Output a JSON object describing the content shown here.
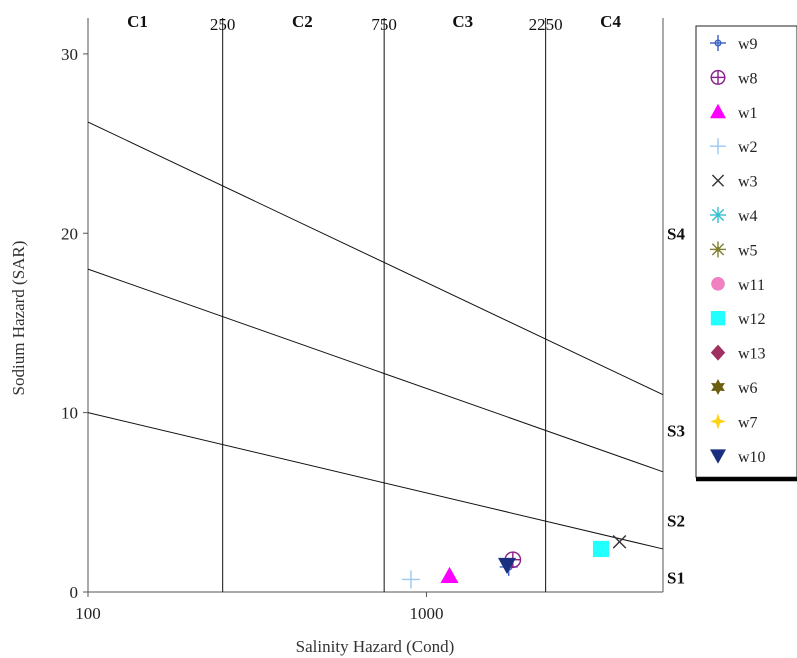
{
  "chart_data": {
    "type": "scatter",
    "title": "",
    "xlabel": "Salinity Hazard (Cond)",
    "ylabel": "Sodium Hazard (SAR)",
    "x_scale": "log",
    "xlim": [
      100,
      5000
    ],
    "ylim": [
      0,
      32
    ],
    "x_ticks": [
      {
        "value": 100,
        "label": "100"
      },
      {
        "value": 1000,
        "label": "1000"
      }
    ],
    "y_ticks": [
      {
        "value": 0,
        "label": "0"
      },
      {
        "value": 10,
        "label": "10"
      },
      {
        "value": 20,
        "label": "20"
      },
      {
        "value": 30,
        "label": "30"
      }
    ],
    "class_boundaries": [
      {
        "value": 250,
        "label": "250"
      },
      {
        "value": 750,
        "label": "750"
      },
      {
        "value": 2250,
        "label": "2250"
      }
    ],
    "salinity_classes": [
      {
        "label": "C1",
        "x": 140
      },
      {
        "label": "C2",
        "x": 430
      },
      {
        "label": "C3",
        "x": 1280
      },
      {
        "label": "C4",
        "x": 3500
      }
    ],
    "sodium_lines": [
      {
        "points": [
          [
            100,
            26.2
          ],
          [
            5000,
            11.0
          ]
        ]
      },
      {
        "points": [
          [
            100,
            18.0
          ],
          [
            5000,
            6.7
          ]
        ]
      },
      {
        "points": [
          [
            100,
            10.0
          ],
          [
            5000,
            2.4
          ]
        ]
      }
    ],
    "sodium_classes": [
      {
        "label": "S4",
        "y": 20.0
      },
      {
        "label": "S3",
        "y": 9.0
      },
      {
        "label": "S2",
        "y": 4.0
      },
      {
        "label": "S1",
        "y": 0.8
      }
    ],
    "series": [
      {
        "name": "w9",
        "marker": "plus-circle-small",
        "color": "#3b5fc4",
        "points": [
          [
            1750,
            1.4
          ]
        ]
      },
      {
        "name": "w8",
        "marker": "circle-plus",
        "color": "#8a1f8a",
        "points": [
          [
            1800,
            1.8
          ]
        ]
      },
      {
        "name": "w1",
        "marker": "triangle-up",
        "color": "#ff00ff",
        "points": [
          [
            1170,
            0.9
          ]
        ]
      },
      {
        "name": "w2",
        "marker": "plus",
        "color": "#9cc8f0",
        "points": [
          [
            900,
            0.7
          ]
        ]
      },
      {
        "name": "w3",
        "marker": "x",
        "color": "#333333",
        "points": [
          [
            3720,
            2.8
          ]
        ]
      },
      {
        "name": "w4",
        "marker": "asterisk",
        "color": "#33c0d0",
        "points": []
      },
      {
        "name": "w5",
        "marker": "star-asterisk",
        "color": "#808030",
        "points": []
      },
      {
        "name": "w11",
        "marker": "circle",
        "color": "#f080c0",
        "points": []
      },
      {
        "name": "w12",
        "marker": "square",
        "color": "#22ffff",
        "points": [
          [
            3280,
            2.4
          ]
        ]
      },
      {
        "name": "w13",
        "marker": "diamond",
        "color": "#a03060",
        "points": []
      },
      {
        "name": "w6",
        "marker": "star6",
        "color": "#6b5e10",
        "points": []
      },
      {
        "name": "w7",
        "marker": "star4",
        "color": "#ffd21a",
        "points": []
      },
      {
        "name": "w10",
        "marker": "triangle-down",
        "color": "#1a2f80",
        "points": [
          [
            1730,
            1.5
          ]
        ]
      }
    ],
    "grid": false,
    "legend_position": "right"
  }
}
